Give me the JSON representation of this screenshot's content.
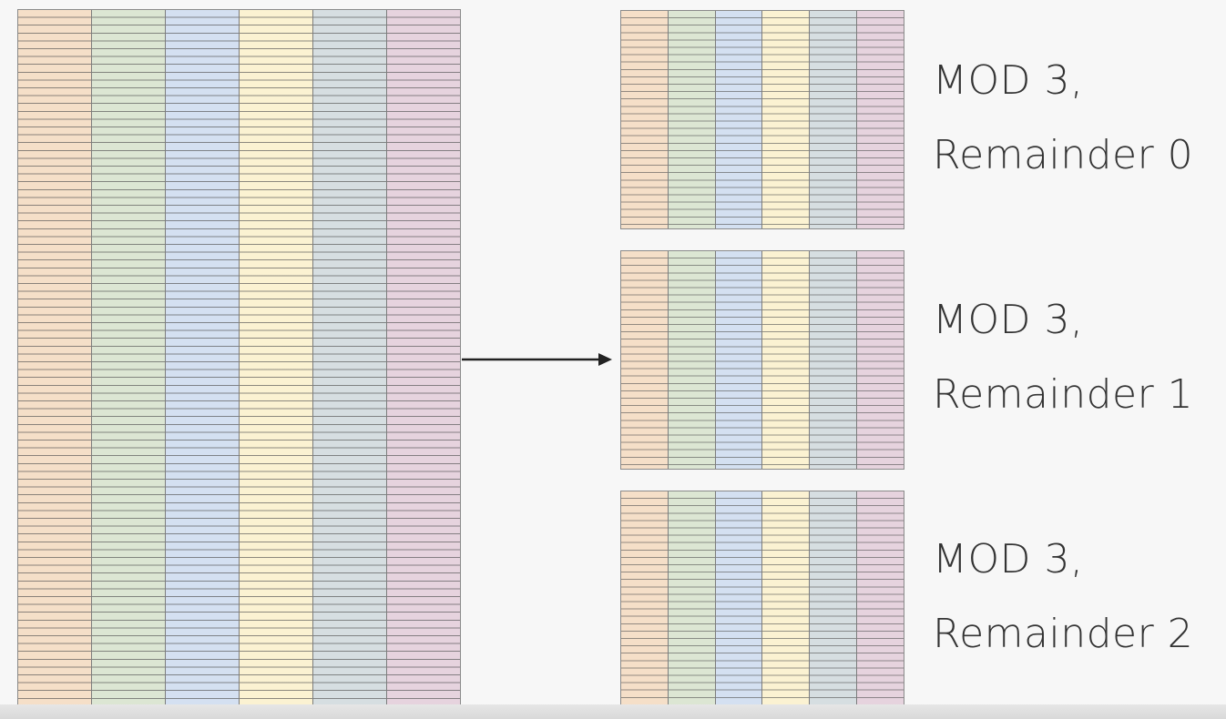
{
  "column_colors": [
    "#f5dfc8",
    "#dce6d3",
    "#d4e0f1",
    "#fbf2d2",
    "#d6dee1",
    "#e6d3de"
  ],
  "partitions": [
    {
      "line1": "MOD 3,",
      "line2": "Remainder 0"
    },
    {
      "line1": "MOD 3,",
      "line2": "Remainder 1"
    },
    {
      "line1": "MOD 3,",
      "line2": "Remainder 2"
    }
  ]
}
